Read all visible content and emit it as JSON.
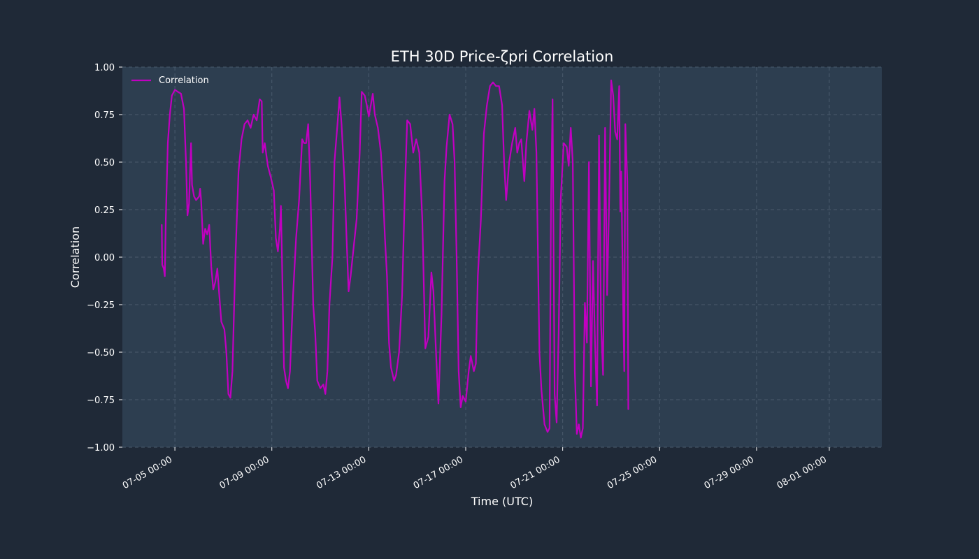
{
  "chart_data": {
    "type": "line",
    "title": "ETH 30D Price-ζpri Correlation",
    "xlabel": "Time (UTC)",
    "ylabel": "Correlation",
    "x_range": [
      "2024-07-02 20:00",
      "2024-08-03 04:00"
    ],
    "ylim": [
      -1.0,
      1.0
    ],
    "grid": true,
    "legend_position": "top-left",
    "x_ticks": [
      {
        "x": "2024-07-05 00:00",
        "label": "07-05 00:00"
      },
      {
        "x": "2024-07-09 00:00",
        "label": "07-09 00:00"
      },
      {
        "x": "2024-07-13 00:00",
        "label": "07-13 00:00"
      },
      {
        "x": "2024-07-17 00:00",
        "label": "07-17 00:00"
      },
      {
        "x": "2024-07-21 00:00",
        "label": "07-21 00:00"
      },
      {
        "x": "2024-07-25 00:00",
        "label": "07-25 00:00"
      },
      {
        "x": "2024-07-29 00:00",
        "label": "07-29 00:00"
      },
      {
        "x": "2024-08-01 00:00",
        "label": "08-01 00:00"
      }
    ],
    "y_ticks": [
      {
        "value": 1.0,
        "label": "1.00"
      },
      {
        "value": 0.75,
        "label": "0.75"
      },
      {
        "value": 0.5,
        "label": "0.50"
      },
      {
        "value": 0.25,
        "label": "0.25"
      },
      {
        "value": 0.0,
        "label": "0.00"
      },
      {
        "value": -0.25,
        "label": "−0.25"
      },
      {
        "value": -0.5,
        "label": "−0.50"
      },
      {
        "value": -0.75,
        "label": "−0.75"
      },
      {
        "value": -1.0,
        "label": "−1.00"
      }
    ],
    "series": [
      {
        "name": "Correlation",
        "color": "#c000c0",
        "points": [
          [
            "2024-07-04 11:00",
            0.17
          ],
          [
            "2024-07-04 11:30",
            -0.04
          ],
          [
            "2024-07-04 13:00",
            -0.06
          ],
          [
            "2024-07-04 14:00",
            -0.1
          ],
          [
            "2024-07-04 15:00",
            0.2
          ],
          [
            "2024-07-04 17:00",
            0.6
          ],
          [
            "2024-07-04 19:00",
            0.75
          ],
          [
            "2024-07-04 21:00",
            0.85
          ],
          [
            "2024-07-05 00:00",
            0.88
          ],
          [
            "2024-07-05 03:00",
            0.87
          ],
          [
            "2024-07-05 06:00",
            0.86
          ],
          [
            "2024-07-05 09:00",
            0.78
          ],
          [
            "2024-07-05 11:00",
            0.5
          ],
          [
            "2024-07-05 12:30",
            0.22
          ],
          [
            "2024-07-05 14:00",
            0.28
          ],
          [
            "2024-07-05 15:00",
            0.45
          ],
          [
            "2024-07-05 16:00",
            0.6
          ],
          [
            "2024-07-05 17:00",
            0.38
          ],
          [
            "2024-07-05 19:00",
            0.32
          ],
          [
            "2024-07-05 21:00",
            0.3
          ],
          [
            "2024-07-06 00:00",
            0.32
          ],
          [
            "2024-07-06 01:00",
            0.36
          ],
          [
            "2024-07-06 02:00",
            0.3
          ],
          [
            "2024-07-06 04:00",
            0.07
          ],
          [
            "2024-07-06 06:00",
            0.15
          ],
          [
            "2024-07-06 08:00",
            0.12
          ],
          [
            "2024-07-06 10:00",
            0.17
          ],
          [
            "2024-07-06 12:00",
            -0.05
          ],
          [
            "2024-07-06 14:00",
            -0.17
          ],
          [
            "2024-07-06 16:00",
            -0.13
          ],
          [
            "2024-07-06 18:00",
            -0.06
          ],
          [
            "2024-07-06 20:00",
            -0.2
          ],
          [
            "2024-07-06 22:00",
            -0.34
          ],
          [
            "2024-07-07 01:00",
            -0.38
          ],
          [
            "2024-07-07 03:00",
            -0.5
          ],
          [
            "2024-07-07 05:00",
            -0.72
          ],
          [
            "2024-07-07 07:00",
            -0.74
          ],
          [
            "2024-07-07 09:00",
            -0.6
          ],
          [
            "2024-07-07 12:00",
            0.0
          ],
          [
            "2024-07-07 15:00",
            0.45
          ],
          [
            "2024-07-07 18:00",
            0.62
          ],
          [
            "2024-07-07 21:00",
            0.7
          ],
          [
            "2024-07-08 00:00",
            0.72
          ],
          [
            "2024-07-08 03:00",
            0.68
          ],
          [
            "2024-07-08 06:00",
            0.75
          ],
          [
            "2024-07-08 09:00",
            0.72
          ],
          [
            "2024-07-08 12:00",
            0.83
          ],
          [
            "2024-07-08 14:00",
            0.82
          ],
          [
            "2024-07-08 15:00",
            0.55
          ],
          [
            "2024-07-08 17:00",
            0.6
          ],
          [
            "2024-07-08 20:00",
            0.48
          ],
          [
            "2024-07-08 23:00",
            0.42
          ],
          [
            "2024-07-09 02:00",
            0.35
          ],
          [
            "2024-07-09 04:00",
            0.1
          ],
          [
            "2024-07-09 06:00",
            0.03
          ],
          [
            "2024-07-09 08:00",
            0.15
          ],
          [
            "2024-07-09 09:00",
            0.27
          ],
          [
            "2024-07-09 10:00",
            0.0
          ],
          [
            "2024-07-09 12:00",
            -0.58
          ],
          [
            "2024-07-09 14:00",
            -0.65
          ],
          [
            "2024-07-09 16:00",
            -0.69
          ],
          [
            "2024-07-09 18:00",
            -0.6
          ],
          [
            "2024-07-09 21:00",
            -0.2
          ],
          [
            "2024-07-10 00:00",
            0.1
          ],
          [
            "2024-07-10 03:00",
            0.3
          ],
          [
            "2024-07-10 06:00",
            0.62
          ],
          [
            "2024-07-10 08:00",
            0.6
          ],
          [
            "2024-07-10 10:00",
            0.6
          ],
          [
            "2024-07-10 12:00",
            0.7
          ],
          [
            "2024-07-10 14:00",
            0.4
          ],
          [
            "2024-07-10 17:00",
            -0.25
          ],
          [
            "2024-07-10 19:00",
            -0.4
          ],
          [
            "2024-07-10 21:00",
            -0.65
          ],
          [
            "2024-07-11 00:00",
            -0.69
          ],
          [
            "2024-07-11 03:00",
            -0.67
          ],
          [
            "2024-07-11 05:00",
            -0.72
          ],
          [
            "2024-07-11 07:00",
            -0.6
          ],
          [
            "2024-07-11 09:00",
            -0.25
          ],
          [
            "2024-07-11 12:00",
            0.0
          ],
          [
            "2024-07-11 14:00",
            0.5
          ],
          [
            "2024-07-11 17:00",
            0.7
          ],
          [
            "2024-07-11 19:00",
            0.84
          ],
          [
            "2024-07-11 21:00",
            0.7
          ],
          [
            "2024-07-12 00:00",
            0.4
          ],
          [
            "2024-07-12 02:00",
            0.1
          ],
          [
            "2024-07-12 04:00",
            -0.18
          ],
          [
            "2024-07-12 06:00",
            -0.1
          ],
          [
            "2024-07-12 09:00",
            0.05
          ],
          [
            "2024-07-12 12:00",
            0.2
          ],
          [
            "2024-07-12 15:00",
            0.55
          ],
          [
            "2024-07-12 17:00",
            0.87
          ],
          [
            "2024-07-12 20:00",
            0.85
          ],
          [
            "2024-07-12 22:00",
            0.8
          ],
          [
            "2024-07-13 00:00",
            0.74
          ],
          [
            "2024-07-13 02:00",
            0.8
          ],
          [
            "2024-07-13 04:00",
            0.86
          ],
          [
            "2024-07-13 06:00",
            0.75
          ],
          [
            "2024-07-13 09:00",
            0.68
          ],
          [
            "2024-07-13 12:00",
            0.55
          ],
          [
            "2024-07-13 14:00",
            0.35
          ],
          [
            "2024-07-13 16:00",
            0.1
          ],
          [
            "2024-07-13 18:00",
            -0.1
          ],
          [
            "2024-07-13 20:00",
            -0.45
          ],
          [
            "2024-07-13 22:00",
            -0.58
          ],
          [
            "2024-07-14 01:00",
            -0.65
          ],
          [
            "2024-07-14 03:00",
            -0.62
          ],
          [
            "2024-07-14 06:00",
            -0.5
          ],
          [
            "2024-07-14 09:00",
            -0.2
          ],
          [
            "2024-07-14 12:00",
            0.4
          ],
          [
            "2024-07-14 14:00",
            0.72
          ],
          [
            "2024-07-14 17:00",
            0.7
          ],
          [
            "2024-07-14 20:00",
            0.55
          ],
          [
            "2024-07-14 23:00",
            0.62
          ],
          [
            "2024-07-15 02:00",
            0.55
          ],
          [
            "2024-07-15 05:00",
            0.2
          ],
          [
            "2024-07-15 08:00",
            -0.48
          ],
          [
            "2024-07-15 11:00",
            -0.42
          ],
          [
            "2024-07-15 14:00",
            -0.08
          ],
          [
            "2024-07-15 16:00",
            -0.18
          ],
          [
            "2024-07-15 19:00",
            -0.55
          ],
          [
            "2024-07-15 21:00",
            -0.77
          ],
          [
            "2024-07-16 00:00",
            -0.3
          ],
          [
            "2024-07-16 03:00",
            0.4
          ],
          [
            "2024-07-16 05:00",
            0.58
          ],
          [
            "2024-07-16 08:00",
            0.75
          ],
          [
            "2024-07-16 11:00",
            0.7
          ],
          [
            "2024-07-16 13:00",
            0.5
          ],
          [
            "2024-07-16 15:00",
            0.0
          ],
          [
            "2024-07-16 17:00",
            -0.6
          ],
          [
            "2024-07-16 19:00",
            -0.79
          ],
          [
            "2024-07-16 21:00",
            -0.73
          ],
          [
            "2024-07-17 00:00",
            -0.76
          ],
          [
            "2024-07-17 03:00",
            -0.6
          ],
          [
            "2024-07-17 05:00",
            -0.52
          ],
          [
            "2024-07-17 08:00",
            -0.6
          ],
          [
            "2024-07-17 10:00",
            -0.56
          ],
          [
            "2024-07-17 12:00",
            -0.1
          ],
          [
            "2024-07-17 15:00",
            0.2
          ],
          [
            "2024-07-17 18:00",
            0.65
          ],
          [
            "2024-07-17 21:00",
            0.8
          ],
          [
            "2024-07-18 00:00",
            0.9
          ],
          [
            "2024-07-18 03:00",
            0.92
          ],
          [
            "2024-07-18 06:00",
            0.9
          ],
          [
            "2024-07-18 09:00",
            0.9
          ],
          [
            "2024-07-18 12:00",
            0.8
          ],
          [
            "2024-07-18 14:00",
            0.5
          ],
          [
            "2024-07-18 16:00",
            0.3
          ],
          [
            "2024-07-18 19:00",
            0.5
          ],
          [
            "2024-07-18 22:00",
            0.6
          ],
          [
            "2024-07-19 01:00",
            0.68
          ],
          [
            "2024-07-19 03:00",
            0.55
          ],
          [
            "2024-07-19 05:00",
            0.6
          ],
          [
            "2024-07-19 07:00",
            0.62
          ],
          [
            "2024-07-19 10:00",
            0.4
          ],
          [
            "2024-07-19 12:00",
            0.6
          ],
          [
            "2024-07-19 15:00",
            0.77
          ],
          [
            "2024-07-19 18:00",
            0.67
          ],
          [
            "2024-07-19 20:00",
            0.78
          ],
          [
            "2024-07-19 22:00",
            0.55
          ],
          [
            "2024-07-20 01:00",
            -0.5
          ],
          [
            "2024-07-20 03:00",
            -0.7
          ],
          [
            "2024-07-20 06:00",
            -0.88
          ],
          [
            "2024-07-20 09:00",
            -0.92
          ],
          [
            "2024-07-20 11:00",
            -0.9
          ],
          [
            "2024-07-20 12:30",
            0.3
          ],
          [
            "2024-07-20 14:00",
            0.83
          ],
          [
            "2024-07-20 16:00",
            -0.72
          ],
          [
            "2024-07-20 18:00",
            -0.87
          ],
          [
            "2024-07-20 20:00",
            -0.4
          ],
          [
            "2024-07-20 22:00",
            0.3
          ],
          [
            "2024-07-21 01:00",
            0.6
          ],
          [
            "2024-07-21 04:00",
            0.58
          ],
          [
            "2024-07-21 06:00",
            0.48
          ],
          [
            "2024-07-21 08:00",
            0.68
          ],
          [
            "2024-07-21 10:00",
            0.5
          ],
          [
            "2024-07-21 12:00",
            -0.6
          ],
          [
            "2024-07-21 14:00",
            -0.93
          ],
          [
            "2024-07-21 16:00",
            -0.88
          ],
          [
            "2024-07-21 18:00",
            -0.95
          ],
          [
            "2024-07-21 20:00",
            -0.9
          ],
          [
            "2024-07-21 22:00",
            -0.24
          ],
          [
            "2024-07-22 00:00",
            -0.45
          ],
          [
            "2024-07-22 02:00",
            0.5
          ],
          [
            "2024-07-22 04:00",
            -0.68
          ],
          [
            "2024-07-22 06:00",
            -0.02
          ],
          [
            "2024-07-22 08:00",
            -0.45
          ],
          [
            "2024-07-22 10:00",
            -0.78
          ],
          [
            "2024-07-22 12:00",
            0.64
          ],
          [
            "2024-07-22 14:00",
            -0.35
          ],
          [
            "2024-07-22 16:00",
            -0.62
          ],
          [
            "2024-07-22 18:00",
            0.68
          ],
          [
            "2024-07-22 20:00",
            -0.2
          ],
          [
            "2024-07-22 22:00",
            0.3
          ],
          [
            "2024-07-23 00:00",
            0.93
          ],
          [
            "2024-07-23 02:00",
            0.85
          ],
          [
            "2024-07-23 04:00",
            0.66
          ],
          [
            "2024-07-23 06:00",
            0.62
          ],
          [
            "2024-07-23 08:00",
            0.9
          ],
          [
            "2024-07-23 09:00",
            0.24
          ],
          [
            "2024-07-23 10:00",
            0.45
          ],
          [
            "2024-07-23 12:00",
            -0.3
          ],
          [
            "2024-07-23 13:00",
            -0.6
          ],
          [
            "2024-07-23 14:00",
            0.7
          ],
          [
            "2024-07-23 16:00",
            0.4
          ],
          [
            "2024-07-23 17:00",
            -0.8
          ]
        ]
      }
    ]
  }
}
